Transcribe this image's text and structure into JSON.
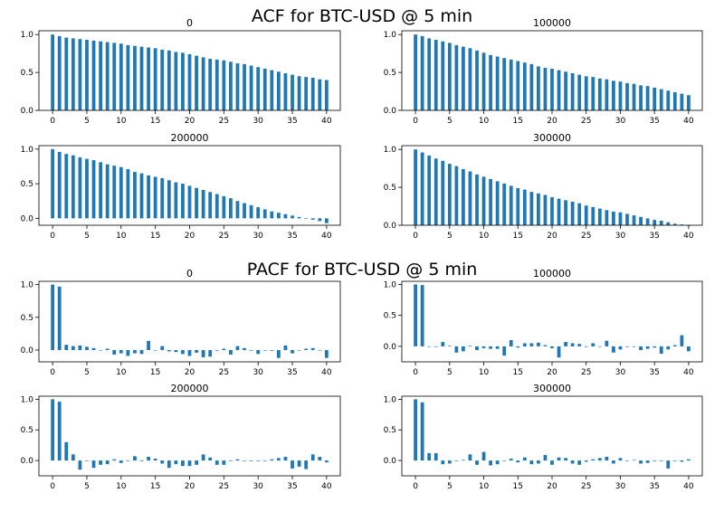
{
  "figures": [
    {
      "title": "ACF for BTC-USD @ 5 min"
    },
    {
      "title": "PACF for BTC-USD @ 5 min"
    }
  ],
  "colors": {
    "bar": "#1f77b4",
    "axis": "#000000",
    "text": "#000000"
  },
  "chart_data": [
    {
      "type": "bar",
      "group": "ACF for BTC-USD @ 5 min",
      "title": "0",
      "xlabel": "",
      "ylabel": "",
      "xlim": [
        -2,
        42
      ],
      "ylim": [
        0,
        1.05
      ],
      "xticks": [
        0,
        5,
        10,
        15,
        20,
        25,
        30,
        35,
        40
      ],
      "yticks": [
        0.0,
        0.5,
        1.0
      ],
      "ytick_labels": [
        "0.0",
        "0.5",
        "1.0"
      ],
      "x": [
        0,
        1,
        2,
        3,
        4,
        5,
        6,
        7,
        8,
        9,
        10,
        11,
        12,
        13,
        14,
        15,
        16,
        17,
        18,
        19,
        20,
        21,
        22,
        23,
        24,
        25,
        26,
        27,
        28,
        29,
        30,
        31,
        32,
        33,
        34,
        35,
        36,
        37,
        38,
        39,
        40
      ],
      "values": [
        1.0,
        0.98,
        0.96,
        0.95,
        0.94,
        0.93,
        0.92,
        0.91,
        0.9,
        0.89,
        0.88,
        0.86,
        0.85,
        0.84,
        0.83,
        0.82,
        0.8,
        0.79,
        0.77,
        0.76,
        0.74,
        0.72,
        0.7,
        0.68,
        0.67,
        0.66,
        0.64,
        0.62,
        0.61,
        0.59,
        0.57,
        0.55,
        0.53,
        0.51,
        0.49,
        0.47,
        0.45,
        0.44,
        0.43,
        0.41,
        0.4
      ]
    },
    {
      "type": "bar",
      "group": "ACF for BTC-USD @ 5 min",
      "title": "100000",
      "xlabel": "",
      "ylabel": "",
      "xlim": [
        -2,
        42
      ],
      "ylim": [
        0,
        1.05
      ],
      "xticks": [
        0,
        5,
        10,
        15,
        20,
        25,
        30,
        35,
        40
      ],
      "yticks": [
        0.0,
        0.5,
        1.0
      ],
      "ytick_labels": [
        "0.0",
        "0.5",
        "1.0"
      ],
      "x": [
        0,
        1,
        2,
        3,
        4,
        5,
        6,
        7,
        8,
        9,
        10,
        11,
        12,
        13,
        14,
        15,
        16,
        17,
        18,
        19,
        20,
        21,
        22,
        23,
        24,
        25,
        26,
        27,
        28,
        29,
        30,
        31,
        32,
        33,
        34,
        35,
        36,
        37,
        38,
        39,
        40
      ],
      "values": [
        1.0,
        0.98,
        0.95,
        0.93,
        0.91,
        0.89,
        0.86,
        0.84,
        0.82,
        0.79,
        0.76,
        0.73,
        0.71,
        0.69,
        0.67,
        0.65,
        0.63,
        0.61,
        0.58,
        0.56,
        0.55,
        0.53,
        0.51,
        0.49,
        0.47,
        0.45,
        0.44,
        0.42,
        0.41,
        0.39,
        0.38,
        0.36,
        0.35,
        0.33,
        0.32,
        0.3,
        0.28,
        0.26,
        0.24,
        0.22,
        0.2
      ]
    },
    {
      "type": "bar",
      "group": "ACF for BTC-USD @ 5 min",
      "title": "200000",
      "xlabel": "",
      "ylabel": "",
      "xlim": [
        -2,
        42
      ],
      "ylim": [
        -0.1,
        1.05
      ],
      "xticks": [
        0,
        5,
        10,
        15,
        20,
        25,
        30,
        35,
        40
      ],
      "yticks": [
        0.0,
        0.5,
        1.0
      ],
      "ytick_labels": [
        "0.0",
        "0.5",
        "1.0"
      ],
      "x": [
        0,
        1,
        2,
        3,
        4,
        5,
        6,
        7,
        8,
        9,
        10,
        11,
        12,
        13,
        14,
        15,
        16,
        17,
        18,
        19,
        20,
        21,
        22,
        23,
        24,
        25,
        26,
        27,
        28,
        29,
        30,
        31,
        32,
        33,
        34,
        35,
        36,
        37,
        38,
        39,
        40
      ],
      "values": [
        1.0,
        0.96,
        0.93,
        0.91,
        0.88,
        0.86,
        0.84,
        0.81,
        0.78,
        0.76,
        0.74,
        0.71,
        0.67,
        0.65,
        0.62,
        0.6,
        0.58,
        0.55,
        0.52,
        0.5,
        0.47,
        0.44,
        0.41,
        0.38,
        0.35,
        0.32,
        0.29,
        0.25,
        0.22,
        0.19,
        0.16,
        0.13,
        0.1,
        0.08,
        0.06,
        0.04,
        0.02,
        0.0,
        -0.02,
        -0.04,
        -0.07
      ]
    },
    {
      "type": "bar",
      "group": "ACF for BTC-USD @ 5 min",
      "title": "300000",
      "xlabel": "",
      "ylabel": "",
      "xlim": [
        -2,
        42
      ],
      "ylim": [
        0,
        1.05
      ],
      "xticks": [
        0,
        5,
        10,
        15,
        20,
        25,
        30,
        35,
        40
      ],
      "yticks": [
        0.0,
        0.5,
        1.0
      ],
      "ytick_labels": [
        "0.0",
        "0.5",
        "1.0"
      ],
      "x": [
        0,
        1,
        2,
        3,
        4,
        5,
        6,
        7,
        8,
        9,
        10,
        11,
        12,
        13,
        14,
        15,
        16,
        17,
        18,
        19,
        20,
        21,
        22,
        23,
        24,
        25,
        26,
        27,
        28,
        29,
        30,
        31,
        32,
        33,
        34,
        35,
        36,
        37,
        38,
        39,
        40
      ],
      "values": [
        1.0,
        0.96,
        0.92,
        0.88,
        0.85,
        0.81,
        0.78,
        0.74,
        0.71,
        0.67,
        0.64,
        0.61,
        0.58,
        0.55,
        0.52,
        0.49,
        0.47,
        0.44,
        0.42,
        0.4,
        0.37,
        0.35,
        0.33,
        0.31,
        0.29,
        0.26,
        0.24,
        0.22,
        0.2,
        0.18,
        0.17,
        0.15,
        0.13,
        0.11,
        0.09,
        0.07,
        0.06,
        0.04,
        0.02,
        0.01,
        0.0
      ]
    },
    {
      "type": "bar",
      "group": "PACF for BTC-USD @ 5 min",
      "title": "0",
      "xlabel": "",
      "ylabel": "",
      "xlim": [
        -2,
        42
      ],
      "ylim": [
        -0.18,
        1.05
      ],
      "xticks": [
        0,
        5,
        10,
        15,
        20,
        25,
        30,
        35,
        40
      ],
      "yticks": [
        0.0,
        0.5,
        1.0
      ],
      "ytick_labels": [
        "0.0",
        "0.5",
        "1.0"
      ],
      "x": [
        0,
        1,
        2,
        3,
        4,
        5,
        6,
        7,
        8,
        9,
        10,
        11,
        12,
        13,
        14,
        15,
        16,
        17,
        18,
        19,
        20,
        21,
        22,
        23,
        24,
        25,
        26,
        27,
        28,
        29,
        30,
        31,
        32,
        33,
        34,
        35,
        36,
        37,
        38,
        39,
        40
      ],
      "values": [
        1.0,
        0.97,
        0.08,
        0.06,
        0.07,
        0.05,
        0.03,
        0.0,
        0.02,
        -0.07,
        -0.05,
        -0.09,
        -0.05,
        -0.06,
        0.14,
        0.0,
        0.06,
        -0.02,
        -0.03,
        -0.06,
        -0.09,
        -0.04,
        -0.11,
        -0.1,
        -0.01,
        0.02,
        -0.07,
        0.06,
        0.03,
        -0.01,
        -0.06,
        0.0,
        -0.01,
        -0.12,
        0.07,
        -0.05,
        0.0,
        0.02,
        0.03,
        0.0,
        -0.12
      ]
    },
    {
      "type": "bar",
      "group": "PACF for BTC-USD @ 5 min",
      "title": "100000",
      "xlabel": "",
      "ylabel": "",
      "xlim": [
        -2,
        42
      ],
      "ylim": [
        -0.25,
        1.05
      ],
      "xticks": [
        0,
        5,
        10,
        15,
        20,
        25,
        30,
        35,
        40
      ],
      "yticks": [
        0.0,
        0.5,
        1.0
      ],
      "ytick_labels": [
        "0.0",
        "0.5",
        "1.0"
      ],
      "x": [
        0,
        1,
        2,
        3,
        4,
        5,
        6,
        7,
        8,
        9,
        10,
        11,
        12,
        13,
        14,
        15,
        16,
        17,
        18,
        19,
        20,
        21,
        22,
        23,
        24,
        25,
        26,
        27,
        28,
        29,
        30,
        31,
        32,
        33,
        34,
        35,
        36,
        37,
        38,
        39,
        40
      ],
      "values": [
        1.0,
        0.99,
        0.0,
        -0.01,
        0.07,
        0.01,
        -0.1,
        -0.08,
        0.01,
        -0.06,
        -0.03,
        -0.04,
        -0.04,
        -0.15,
        0.1,
        -0.02,
        0.05,
        0.05,
        0.06,
        0.02,
        -0.03,
        -0.18,
        0.07,
        0.05,
        0.04,
        -0.01,
        0.05,
        0.0,
        0.09,
        -0.1,
        -0.05,
        -0.01,
        0.0,
        -0.06,
        -0.04,
        -0.02,
        -0.12,
        -0.05,
        0.02,
        0.18,
        -0.08
      ]
    },
    {
      "type": "bar",
      "group": "PACF for BTC-USD @ 5 min",
      "title": "200000",
      "xlabel": "",
      "ylabel": "",
      "xlim": [
        -2,
        42
      ],
      "ylim": [
        -0.25,
        1.05
      ],
      "xticks": [
        0,
        5,
        10,
        15,
        20,
        25,
        30,
        35,
        40
      ],
      "yticks": [
        0.0,
        0.5,
        1.0
      ],
      "ytick_labels": [
        "0.0",
        "0.5",
        "1.0"
      ],
      "x": [
        0,
        1,
        2,
        3,
        4,
        5,
        6,
        7,
        8,
        9,
        10,
        11,
        12,
        13,
        14,
        15,
        16,
        17,
        18,
        19,
        20,
        21,
        22,
        23,
        24,
        25,
        26,
        27,
        28,
        29,
        30,
        31,
        32,
        33,
        34,
        35,
        36,
        37,
        38,
        39,
        40
      ],
      "values": [
        1.0,
        0.96,
        0.3,
        0.1,
        -0.15,
        0.0,
        -0.12,
        -0.07,
        -0.06,
        0.02,
        -0.04,
        0.0,
        0.07,
        -0.01,
        0.06,
        0.03,
        -0.05,
        -0.12,
        -0.06,
        -0.09,
        -0.09,
        -0.07,
        0.1,
        0.05,
        -0.07,
        -0.07,
        0.0,
        0.02,
        0.0,
        -0.01,
        0.0,
        0.0,
        0.02,
        0.04,
        0.06,
        -0.13,
        -0.1,
        -0.14,
        0.1,
        0.06,
        -0.03
      ]
    },
    {
      "type": "bar",
      "group": "PACF for BTC-USD @ 5 min",
      "title": "300000",
      "xlabel": "",
      "ylabel": "",
      "xlim": [
        -2,
        42
      ],
      "ylim": [
        -0.25,
        1.05
      ],
      "xticks": [
        0,
        5,
        10,
        15,
        20,
        25,
        30,
        35,
        40
      ],
      "yticks": [
        0.0,
        0.5,
        1.0
      ],
      "ytick_labels": [
        "0.0",
        "0.5",
        "1.0"
      ],
      "x": [
        0,
        1,
        2,
        3,
        4,
        5,
        6,
        7,
        8,
        9,
        10,
        11,
        12,
        13,
        14,
        15,
        16,
        17,
        18,
        19,
        20,
        21,
        22,
        23,
        24,
        25,
        26,
        27,
        28,
        29,
        30,
        31,
        32,
        33,
        34,
        35,
        36,
        37,
        38,
        39,
        40
      ],
      "values": [
        1.0,
        0.95,
        0.12,
        0.12,
        -0.06,
        -0.05,
        0.0,
        0.01,
        0.1,
        -0.07,
        0.14,
        -0.08,
        -0.06,
        0.0,
        0.03,
        -0.03,
        0.05,
        -0.06,
        -0.05,
        0.09,
        -0.07,
        0.05,
        0.04,
        -0.05,
        -0.07,
        -0.02,
        0.02,
        0.04,
        0.06,
        -0.05,
        0.04,
        0.0,
        0.01,
        -0.05,
        -0.04,
        -0.01,
        -0.01,
        -0.13,
        0.0,
        -0.02,
        0.02
      ]
    }
  ]
}
